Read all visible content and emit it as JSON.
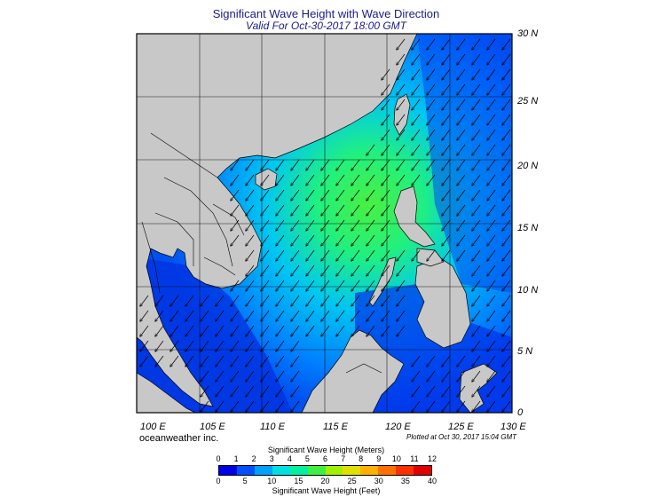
{
  "header": {
    "title": "Significant Wave Height with Wave Direction",
    "valid": "Valid For Oct-30-2017 18:00 GMT"
  },
  "map": {
    "lat_labels": [
      "30 N",
      "25 N",
      "20 N",
      "15 N",
      "10 N",
      "5 N",
      "0"
    ],
    "lon_labels": [
      "100 E",
      "105 E",
      "110 E",
      "115 E",
      "120 E",
      "125 E",
      "130 E"
    ],
    "lon_range": [
      100,
      130
    ],
    "lat_range": [
      0,
      30
    ],
    "land_color": "#c8c8c8",
    "wave_direction": "toward southwest"
  },
  "footer": {
    "credit": "oceanweather inc.",
    "plotted": "Plotted at Oct 30, 2017 15:04 GMT"
  },
  "colorbar": {
    "title_meters": "Significant Wave Height (Meters)",
    "title_feet": "Significant Wave Height (Feet)",
    "meter_ticks": [
      "0",
      "1",
      "2",
      "3",
      "4",
      "5",
      "6",
      "7",
      "8",
      "9",
      "10",
      "11",
      "12"
    ],
    "feet_ticks": [
      "0",
      "5",
      "10",
      "15",
      "20",
      "25",
      "30",
      "35",
      "40"
    ],
    "colors": [
      "#0000e6",
      "#0050ff",
      "#00a0ff",
      "#00e0e0",
      "#00f0a0",
      "#40f040",
      "#a0f000",
      "#e0e000",
      "#ffb000",
      "#ff7000",
      "#ff3000",
      "#e00000"
    ]
  }
}
